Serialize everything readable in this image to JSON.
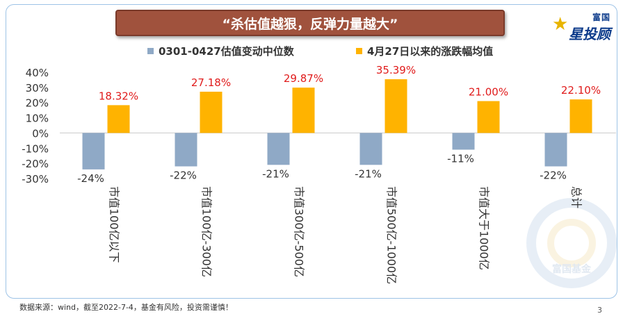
{
  "banner": {
    "title": "“杀估值越狠，反弹力量越大”"
  },
  "logo": {
    "top_text": "富国",
    "main_text": "星投顾",
    "watermark_text": "富国基金"
  },
  "footer": {
    "source": "数据来源：wind，截至2022-7-4，基金有风险，投资需谨慎！",
    "page_number": "3"
  },
  "colors": {
    "series1": "#8fa9c6",
    "series2": "#ffb300",
    "label_red": "#e01b1b",
    "banner": "#a0523d"
  },
  "chart_data": {
    "type": "bar",
    "categories": [
      "市值100亿以下",
      "市值100亿-300亿",
      "市值300亿-500亿",
      "市值500亿-1000亿",
      "市值大于1000亿",
      "总计"
    ],
    "series": [
      {
        "name": "0301-0427估值变动中位数",
        "values": [
          -24,
          -22,
          -21,
          -21,
          -11,
          -22
        ],
        "labels": [
          "-24%",
          "-22%",
          "-21%",
          "-21%",
          "-11%",
          "-22%"
        ]
      },
      {
        "name": "4月27日以来的涨跌幅均值",
        "values": [
          18.32,
          27.18,
          29.87,
          35.39,
          21.0,
          22.1
        ],
        "labels": [
          "18.32%",
          "27.18%",
          "29.87%",
          "35.39%",
          "21.00%",
          "22.10%"
        ]
      }
    ],
    "yticks": [
      "40%",
      "30%",
      "20%",
      "10%",
      "0%",
      "-10%",
      "-20%",
      "-30%"
    ],
    "ytick_values": [
      40,
      30,
      20,
      10,
      0,
      -10,
      -20,
      -30
    ],
    "ylim": [
      -30,
      40
    ],
    "legend_position": "top"
  }
}
